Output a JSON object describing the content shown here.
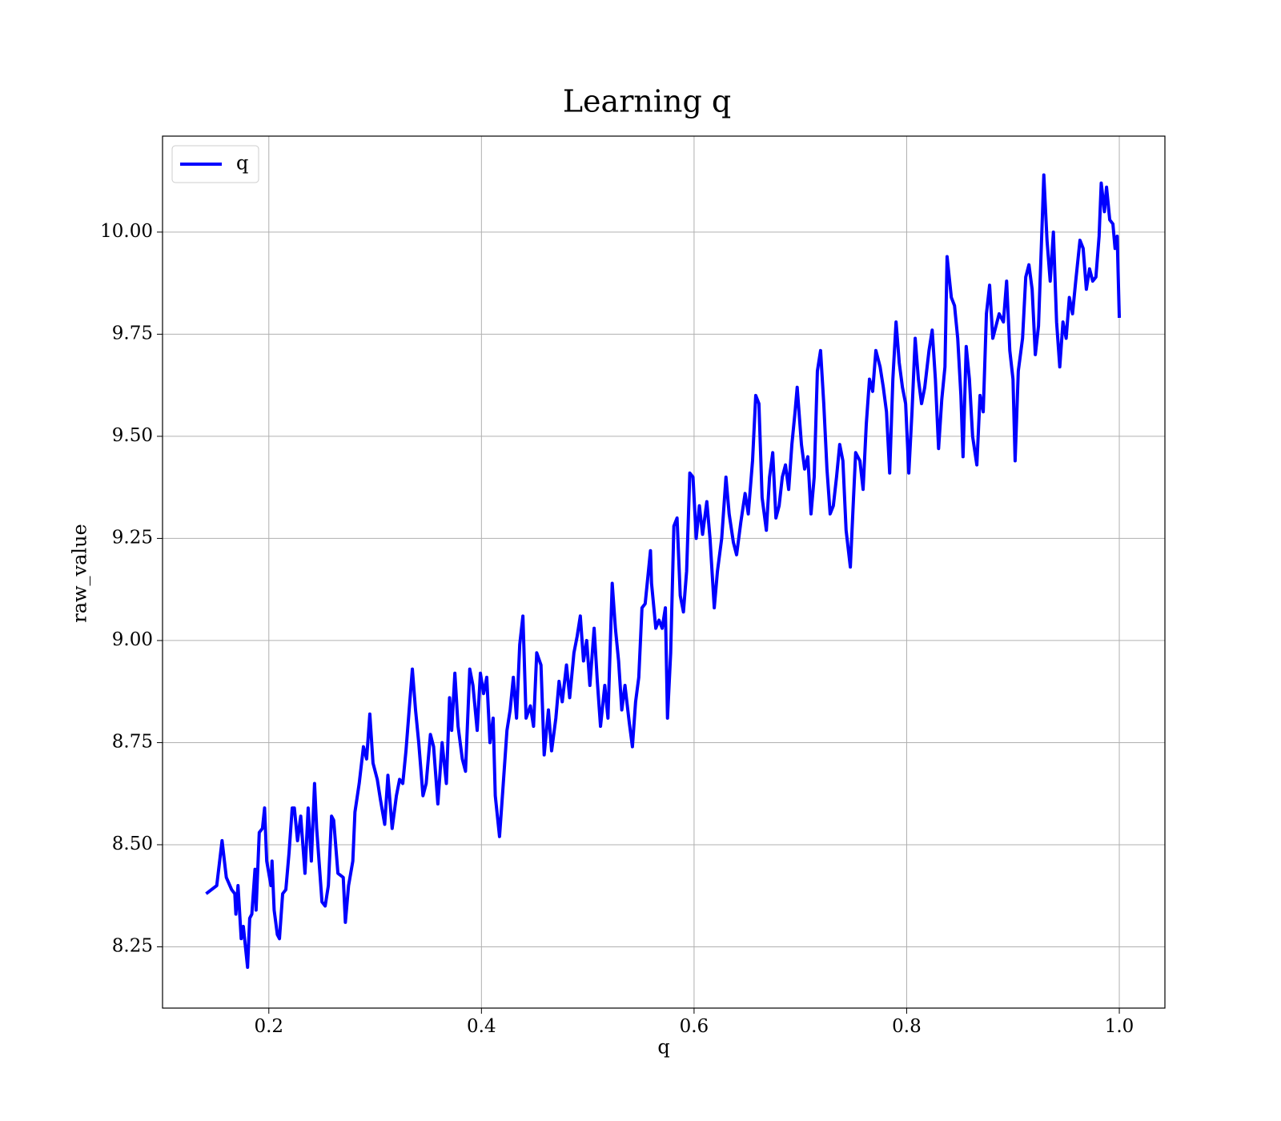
{
  "chart_data": {
    "type": "line",
    "title": "Learning q",
    "xlabel": "q",
    "ylabel": "raw_value",
    "x": [
      0.141,
      0.151,
      0.156,
      0.16,
      0.165,
      0.168,
      0.169,
      0.171,
      0.174,
      0.176,
      0.18,
      0.182,
      0.184,
      0.187,
      0.188,
      0.191,
      0.194,
      0.196,
      0.198,
      0.202,
      0.203,
      0.205,
      0.208,
      0.21,
      0.213,
      0.216,
      0.219,
      0.222,
      0.224,
      0.227,
      0.23,
      0.232,
      0.234,
      0.237,
      0.24,
      0.243,
      0.245,
      0.25,
      0.253,
      0.256,
      0.259,
      0.261,
      0.265,
      0.27,
      0.272,
      0.275,
      0.279,
      0.281,
      0.285,
      0.289,
      0.292,
      0.295,
      0.298,
      0.302,
      0.305,
      0.309,
      0.312,
      0.316,
      0.32,
      0.323,
      0.326,
      0.329,
      0.332,
      0.335,
      0.338,
      0.341,
      0.345,
      0.348,
      0.352,
      0.355,
      0.359,
      0.363,
      0.367,
      0.37,
      0.372,
      0.375,
      0.378,
      0.382,
      0.385,
      0.389,
      0.392,
      0.396,
      0.399,
      0.402,
      0.405,
      0.408,
      0.411,
      0.413,
      0.417,
      0.42,
      0.424,
      0.427,
      0.43,
      0.433,
      0.436,
      0.439,
      0.442,
      0.446,
      0.449,
      0.452,
      0.456,
      0.459,
      0.463,
      0.466,
      0.47,
      0.473,
      0.476,
      0.48,
      0.483,
      0.487,
      0.49,
      0.493,
      0.496,
      0.499,
      0.502,
      0.506,
      0.509,
      0.512,
      0.516,
      0.519,
      0.523,
      0.526,
      0.529,
      0.532,
      0.535,
      0.539,
      0.542,
      0.545,
      0.548,
      0.551,
      0.554,
      0.559,
      0.56,
      0.564,
      0.567,
      0.57,
      0.573,
      0.575,
      0.578,
      0.581,
      0.584,
      0.587,
      0.59,
      0.593,
      0.596,
      0.599,
      0.602,
      0.605,
      0.608,
      0.612,
      0.615,
      0.619,
      0.622,
      0.626,
      0.63,
      0.633,
      0.637,
      0.64,
      0.644,
      0.648,
      0.651,
      0.655,
      0.658,
      0.661,
      0.664,
      0.668,
      0.671,
      0.674,
      0.677,
      0.68,
      0.683,
      0.686,
      0.689,
      0.692,
      0.695,
      0.697,
      0.701,
      0.704,
      0.707,
      0.71,
      0.713,
      0.716,
      0.719,
      0.722,
      0.725,
      0.728,
      0.731,
      0.734,
      0.737,
      0.74,
      0.743,
      0.747,
      0.75,
      0.752,
      0.756,
      0.759,
      0.762,
      0.765,
      0.768,
      0.771,
      0.775,
      0.778,
      0.781,
      0.784,
      0.787,
      0.79,
      0.793,
      0.796,
      0.799,
      0.802,
      0.805,
      0.808,
      0.811,
      0.814,
      0.817,
      0.821,
      0.824,
      0.827,
      0.83,
      0.833,
      0.836,
      0.838,
      0.842,
      0.845,
      0.848,
      0.851,
      0.853,
      0.856,
      0.859,
      0.862,
      0.866,
      0.869,
      0.872,
      0.875,
      0.878,
      0.881,
      0.884,
      0.887,
      0.891,
      0.894,
      0.897,
      0.9,
      0.902,
      0.905,
      0.909,
      0.912,
      0.915,
      0.918,
      0.921,
      0.924,
      0.927,
      0.929,
      0.932,
      0.935,
      0.938,
      0.941,
      0.944,
      0.947,
      0.95,
      0.953,
      0.956,
      0.959,
      0.963,
      0.966,
      0.969,
      0.972,
      0.975,
      0.978,
      0.981,
      0.983,
      0.986,
      0.988,
      0.991,
      0.994,
      0.996,
      0.998,
      1.0
    ],
    "series": [
      {
        "name": "q",
        "color": "#0000ff",
        "values": [
          8.38,
          8.4,
          8.51,
          8.42,
          8.39,
          8.38,
          8.33,
          8.4,
          8.27,
          8.3,
          8.2,
          8.32,
          8.33,
          8.44,
          8.34,
          8.53,
          8.54,
          8.59,
          8.46,
          8.4,
          8.46,
          8.34,
          8.28,
          8.27,
          8.38,
          8.39,
          8.48,
          8.59,
          8.59,
          8.51,
          8.57,
          8.5,
          8.43,
          8.59,
          8.46,
          8.65,
          8.54,
          8.36,
          8.35,
          8.4,
          8.57,
          8.56,
          8.43,
          8.42,
          8.31,
          8.4,
          8.46,
          8.58,
          8.65,
          8.74,
          8.71,
          8.82,
          8.7,
          8.66,
          8.61,
          8.55,
          8.67,
          8.54,
          8.62,
          8.66,
          8.65,
          8.73,
          8.83,
          8.93,
          8.83,
          8.75,
          8.62,
          8.65,
          8.77,
          8.74,
          8.6,
          8.75,
          8.65,
          8.86,
          8.78,
          8.92,
          8.79,
          8.71,
          8.68,
          8.93,
          8.89,
          8.78,
          8.92,
          8.87,
          8.91,
          8.75,
          8.81,
          8.62,
          8.52,
          8.63,
          8.78,
          8.83,
          8.91,
          8.81,
          8.99,
          9.06,
          8.81,
          8.84,
          8.79,
          8.97,
          8.94,
          8.72,
          8.83,
          8.73,
          8.81,
          8.9,
          8.85,
          8.94,
          8.86,
          8.97,
          9.01,
          9.06,
          8.95,
          9.0,
          8.89,
          9.03,
          8.9,
          8.79,
          8.89,
          8.81,
          9.14,
          9.03,
          8.95,
          8.83,
          8.89,
          8.8,
          8.74,
          8.85,
          8.91,
          9.08,
          9.09,
          9.22,
          9.14,
          9.03,
          9.05,
          9.03,
          9.08,
          8.81,
          8.97,
          9.28,
          9.3,
          9.11,
          9.07,
          9.17,
          9.41,
          9.4,
          9.25,
          9.33,
          9.26,
          9.34,
          9.25,
          9.08,
          9.17,
          9.25,
          9.4,
          9.31,
          9.24,
          9.21,
          9.29,
          9.36,
          9.31,
          9.44,
          9.6,
          9.58,
          9.35,
          9.27,
          9.4,
          9.46,
          9.3,
          9.33,
          9.4,
          9.43,
          9.37,
          9.48,
          9.56,
          9.62,
          9.48,
          9.42,
          9.45,
          9.31,
          9.4,
          9.66,
          9.71,
          9.58,
          9.42,
          9.31,
          9.33,
          9.4,
          9.48,
          9.44,
          9.27,
          9.18,
          9.35,
          9.46,
          9.44,
          9.37,
          9.53,
          9.64,
          9.61,
          9.71,
          9.67,
          9.62,
          9.56,
          9.41,
          9.64,
          9.78,
          9.68,
          9.62,
          9.58,
          9.41,
          9.56,
          9.74,
          9.64,
          9.58,
          9.62,
          9.71,
          9.76,
          9.64,
          9.47,
          9.59,
          9.67,
          9.94,
          9.84,
          9.82,
          9.74,
          9.6,
          9.45,
          9.72,
          9.64,
          9.5,
          9.43,
          9.6,
          9.56,
          9.8,
          9.87,
          9.74,
          9.77,
          9.8,
          9.78,
          9.88,
          9.71,
          9.64,
          9.44,
          9.66,
          9.74,
          9.89,
          9.92,
          9.86,
          9.7,
          9.77,
          9.99,
          10.14,
          9.98,
          9.88,
          10.0,
          9.78,
          9.67,
          9.78,
          9.74,
          9.84,
          9.8,
          9.88,
          9.98,
          9.96,
          9.86,
          9.91,
          9.88,
          9.89,
          9.99,
          10.12,
          10.05,
          10.11,
          10.03,
          10.02,
          9.96,
          9.99,
          9.79
        ]
      }
    ],
    "xlim": [
      0.1,
      1.0429
    ],
    "ylim": [
      8.1,
      10.235
    ],
    "xticks": [
      0.2,
      0.4,
      0.6,
      0.8,
      {
        "value": 1,
        "label": "1.0"
      }
    ],
    "yticks": [
      8.25,
      {
        "value": 8.5,
        "label": "8.50"
      },
      8.75,
      {
        "value": 9,
        "label": "9.00"
      },
      9.25,
      {
        "value": 9.5,
        "label": "9.50"
      },
      9.75,
      {
        "value": 10,
        "label": "10.00"
      }
    ],
    "grid": true,
    "legend": "upper left"
  }
}
